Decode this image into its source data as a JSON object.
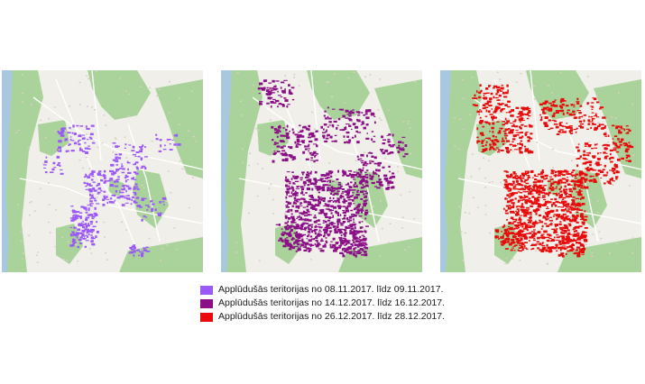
{
  "maps": [
    {
      "flood_color": "#9b59f6"
    },
    {
      "flood_color": "#8b0f86"
    },
    {
      "flood_color": "#e80b0b"
    }
  ],
  "base_colors": {
    "land": "#f1efe9",
    "forest": "#a9d39a",
    "water": "#a8c8e0"
  },
  "legend": {
    "items": [
      {
        "label": "Applūdušās teritorijas no 08.11.2017. līdz 09.11.2017.",
        "color": "#9b59f6"
      },
      {
        "label": "Applūdušās teritorijas no 14.12.2017. līdz 16.12.2017.",
        "color": "#8b0f86"
      },
      {
        "label": "Applūdušās teritorijas no 26.12.2017. līdz 28.12.2017.",
        "color": "#e80b0b"
      }
    ]
  }
}
